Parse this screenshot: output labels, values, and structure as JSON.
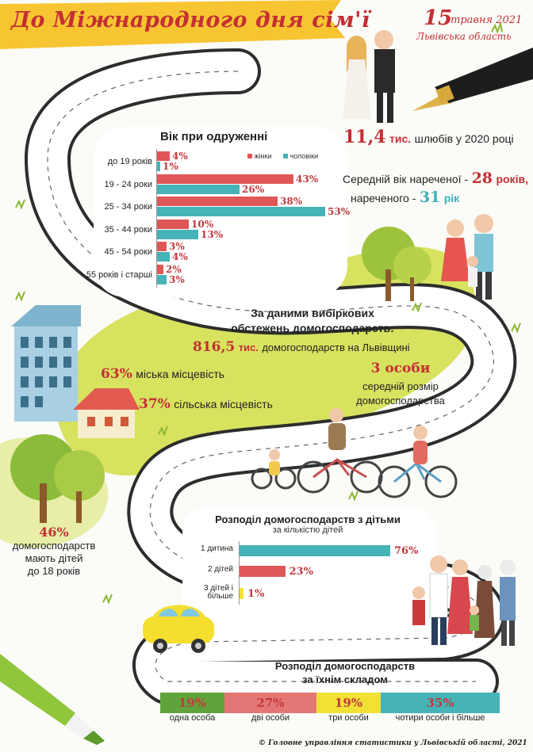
{
  "header": {
    "title": "До Міжнародного дня сім'ї",
    "date_day": "15",
    "date_month_year": "травня 2021",
    "region": "Львівська область"
  },
  "marriages": {
    "value": "11,4",
    "unit": "тис.",
    "text": "шлюбів у 2020 році",
    "avg_age_text_1": "Середній вік нареченої -",
    "bride_age": "28",
    "bride_unit": "років,",
    "avg_age_text_2": "нареченого -",
    "groom_age": "31",
    "groom_unit": "рік"
  },
  "age_chart": {
    "title": "Вік при одруженні",
    "legend_women": "жінки",
    "legend_men": "чоловіки",
    "categories": [
      "до 19 років",
      "19 - 24 роки",
      "25 - 34 роки",
      "35 - 44 роки",
      "45 - 54 роки",
      "55 років і старші"
    ],
    "women": [
      "4%",
      "43%",
      "38%",
      "10%",
      "3%",
      "2%"
    ],
    "men": [
      "1%",
      "26%",
      "53%",
      "13%",
      "4%",
      "3%"
    ]
  },
  "households": {
    "heading_1": "За даними вибіркових",
    "heading_2": "обстежень домогосподарств:",
    "total_value": "816,5",
    "total_unit": "тис.",
    "total_text": "домогосподарств на Львівщині",
    "urban_pct": "63%",
    "urban_text": "міська місцевість",
    "rural_pct": "37%",
    "rural_text": "сільська місцевість",
    "avg_size_value": "3 особи",
    "avg_size_text_1": "середній розмір",
    "avg_size_text_2": "домогосподарства"
  },
  "children_side": {
    "pct": "46%",
    "line1": "домогосподарств",
    "line2": "мають дітей",
    "line3": "до 18 років"
  },
  "children_chart": {
    "title": "Розподіл домогосподарств з дітьми",
    "subtitle": "за кількістю дітей",
    "categories": [
      "1 дитина",
      "2 дітей",
      "3 дітей і більше"
    ],
    "labels": [
      "76%",
      "23%",
      "1%"
    ]
  },
  "composition": {
    "title_1": "Розподіл домогосподарств",
    "title_2": "за їхнім складом",
    "items": [
      {
        "pct": "19%",
        "label": "одна особа"
      },
      {
        "pct": "27%",
        "label": "дві особи"
      },
      {
        "pct": "19%",
        "label": "три особи"
      },
      {
        "pct": "35%",
        "label": "чотири особи і більше"
      }
    ]
  },
  "footer": {
    "text": "© Головне управління статистики у Львівській області, 2021"
  },
  "chart_data": [
    {
      "type": "bar",
      "title": "Вік при одруженні",
      "categories": [
        "до 19 років",
        "19 - 24 роки",
        "25 - 34 роки",
        "35 - 44 роки",
        "45 - 54 роки",
        "55 років і старші"
      ],
      "series": [
        {
          "name": "жінки",
          "values": [
            4,
            43,
            38,
            10,
            3,
            2
          ]
        },
        {
          "name": "чоловіки",
          "values": [
            1,
            26,
            53,
            13,
            4,
            3
          ]
        }
      ]
    },
    {
      "type": "bar",
      "title": "Розподіл домогосподарств з дітьми",
      "subtitle": "за кількістю дітей",
      "categories": [
        "1 дитина",
        "2 дітей",
        "3 дітей і більше"
      ],
      "values": [
        76,
        23,
        1
      ]
    },
    {
      "type": "bar",
      "title": "Розподіл домогосподарств за їхнім складом",
      "categories": [
        "одна особа",
        "дві особи",
        "три особи",
        "чотири особи і більше"
      ],
      "values": [
        19,
        27,
        19,
        35
      ]
    }
  ],
  "colors": {
    "women": "#df5757",
    "men": "#45b3b8",
    "accent_red": "#c42f33",
    "grass": "#d4e05a",
    "road": "#2b2b2b",
    "composition": [
      "#61a33b",
      "#e57676",
      "#f1e135",
      "#45b3b8"
    ]
  }
}
